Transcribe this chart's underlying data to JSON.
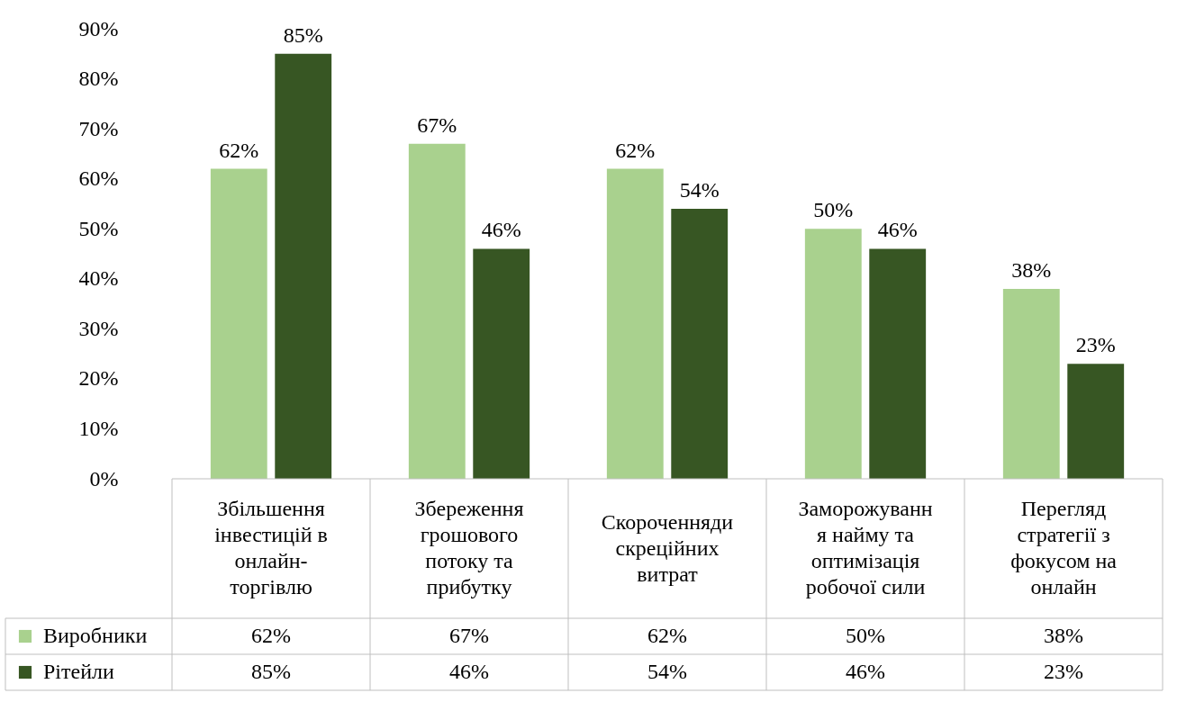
{
  "chart_data": {
    "type": "bar",
    "categories": [
      "Збільшення\nінвестицій в\nонлайн-\nторгівлю",
      "Збереження\nгрошового\nпотоку та\nприбутку",
      "Скороченняди\nскреційних\nвитрат",
      "Заморожуванн\nя найму та\nоптимізація\nробочої сили",
      "Перегляд\nстратегії з\nфокусом на\nонлайн"
    ],
    "series": [
      {
        "name": "Виробники",
        "color": "#a9d18e",
        "values": [
          62,
          67,
          62,
          50,
          38
        ],
        "value_labels": [
          "62%",
          "67%",
          "62%",
          "50%",
          "38%"
        ]
      },
      {
        "name": "Рітейли",
        "color": "#375623",
        "values": [
          85,
          46,
          54,
          46,
          23
        ],
        "value_labels": [
          "85%",
          "46%",
          "54%",
          "46%",
          "23%"
        ]
      }
    ],
    "ylim": [
      0,
      90
    ],
    "yticks": [
      {
        "value": 0,
        "label": "0%"
      },
      {
        "value": 10,
        "label": "10%"
      },
      {
        "value": 20,
        "label": "20%"
      },
      {
        "value": 30,
        "label": "30%"
      },
      {
        "value": 40,
        "label": "40%"
      },
      {
        "value": 50,
        "label": "50%"
      },
      {
        "value": 60,
        "label": "60%"
      },
      {
        "value": 70,
        "label": "70%"
      },
      {
        "value": 80,
        "label": "80%"
      },
      {
        "value": 90,
        "label": "90%"
      }
    ],
    "grid": false,
    "legend": "bottom left"
  }
}
